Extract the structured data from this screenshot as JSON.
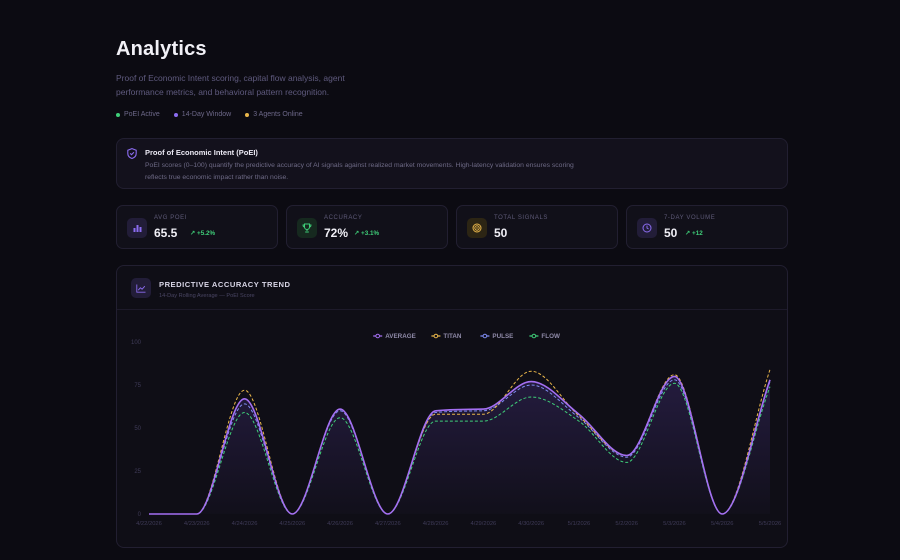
{
  "header": {
    "title": "Analytics",
    "subtitle": "Proof of Economic Intent scoring, capital flow analysis, agent performance metrics, and behavioral pattern recognition."
  },
  "status": [
    {
      "label": "PoEI Active",
      "color": "#3fcf79"
    },
    {
      "label": "14-Day Window",
      "color": "#8b6cf0"
    },
    {
      "label": "3 Agents Online",
      "color": "#e9b64a"
    }
  ],
  "info": {
    "title": "Proof of Economic Intent (PoEI)",
    "body": "PoEI scores (0–100) quantify the predictive accuracy of AI signals against realized market movements. High-latency validation ensures scoring reflects true economic impact rather than noise."
  },
  "stats": [
    {
      "label": "AVG POEI",
      "value": "65.5",
      "delta": "+5.2%",
      "icon": "bar-chart-icon",
      "color": "#8b6cf0"
    },
    {
      "label": "ACCURACY",
      "value": "72%",
      "delta": "+3.1%",
      "icon": "trophy-icon",
      "color": "#3fcf79"
    },
    {
      "label": "TOTAL SIGNALS",
      "value": "50",
      "delta": "",
      "icon": "target-icon",
      "color": "#e9b64a"
    },
    {
      "label": "7-DAY VOLUME",
      "value": "50",
      "delta": "+12",
      "icon": "clock-icon",
      "color": "#8b6cf0"
    }
  ],
  "chart": {
    "title": "PREDICTIVE ACCURACY TREND",
    "subtitle": "14-Day Rolling Average — PoEI Score"
  },
  "chart_data": {
    "type": "line",
    "x": [
      "4/22/2026",
      "4/23/2026",
      "4/24/2026",
      "4/25/2026",
      "4/26/2026",
      "4/27/2026",
      "4/28/2026",
      "4/29/2026",
      "4/30/2026",
      "5/1/2026",
      "5/2/2026",
      "5/3/2026",
      "5/4/2026",
      "5/5/2026"
    ],
    "ylim": [
      0,
      100
    ],
    "yticks": [
      0,
      25,
      50,
      75,
      100
    ],
    "grid": false,
    "legend_position": "top-center",
    "series": [
      {
        "name": "AVERAGE",
        "color": "#a46ff2",
        "dash": false,
        "fill": true,
        "values": [
          0,
          0,
          67,
          0,
          61,
          0,
          60,
          61,
          77,
          58,
          34,
          80,
          0,
          78
        ]
      },
      {
        "name": "TITAN",
        "color": "#e9b64a",
        "dash": true,
        "fill": false,
        "values": [
          0,
          0,
          72,
          0,
          61,
          0,
          58,
          58,
          83,
          57,
          34,
          81,
          0,
          84
        ]
      },
      {
        "name": "PULSE",
        "color": "#7f8cf2",
        "dash": true,
        "fill": false,
        "values": [
          0,
          0,
          64,
          0,
          60,
          0,
          59,
          60,
          75,
          56,
          33,
          78,
          0,
          77
        ]
      },
      {
        "name": "FLOW",
        "color": "#3fcf79",
        "dash": true,
        "fill": false,
        "values": [
          0,
          0,
          59,
          0,
          56,
          0,
          54,
          54,
          68,
          54,
          30,
          76,
          0,
          74
        ]
      }
    ]
  }
}
